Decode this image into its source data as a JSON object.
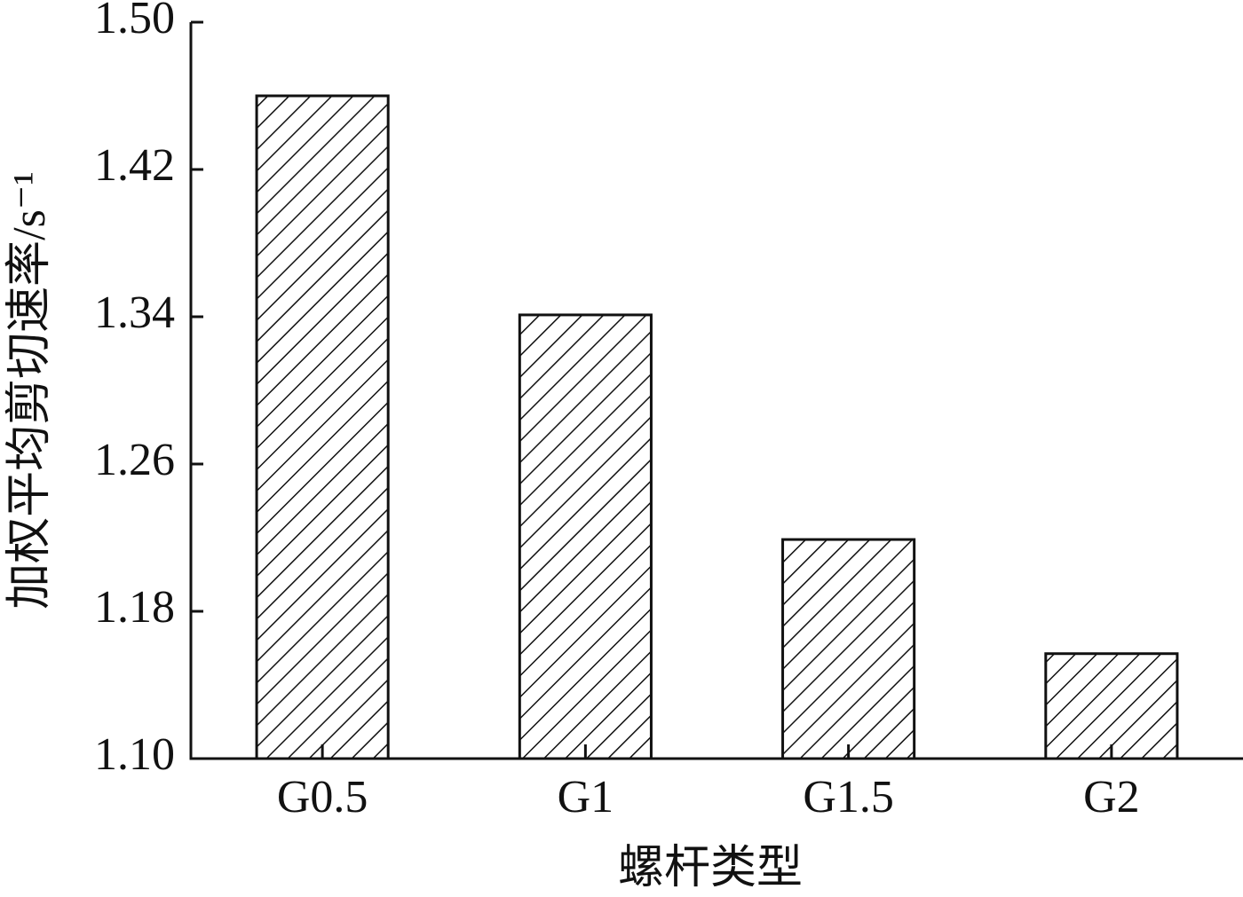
{
  "chart_data": {
    "type": "bar",
    "x_label": "螺杆类型",
    "y_label": "加权平均剪切速率/s⁻¹",
    "categories": [
      "G0.5",
      "G1",
      "G1.5",
      "G2"
    ],
    "values": [
      1.46,
      1.341,
      1.219,
      1.157
    ],
    "color": "#111111",
    "hatch": "diagonal",
    "ylim": [
      1.1,
      1.5
    ],
    "yticks": [
      {
        "value": 1.1,
        "label": "1.10"
      },
      1.18,
      1.26,
      1.34,
      1.42,
      {
        "value": 1.5,
        "label": "1.50"
      }
    ],
    "grid": false
  }
}
